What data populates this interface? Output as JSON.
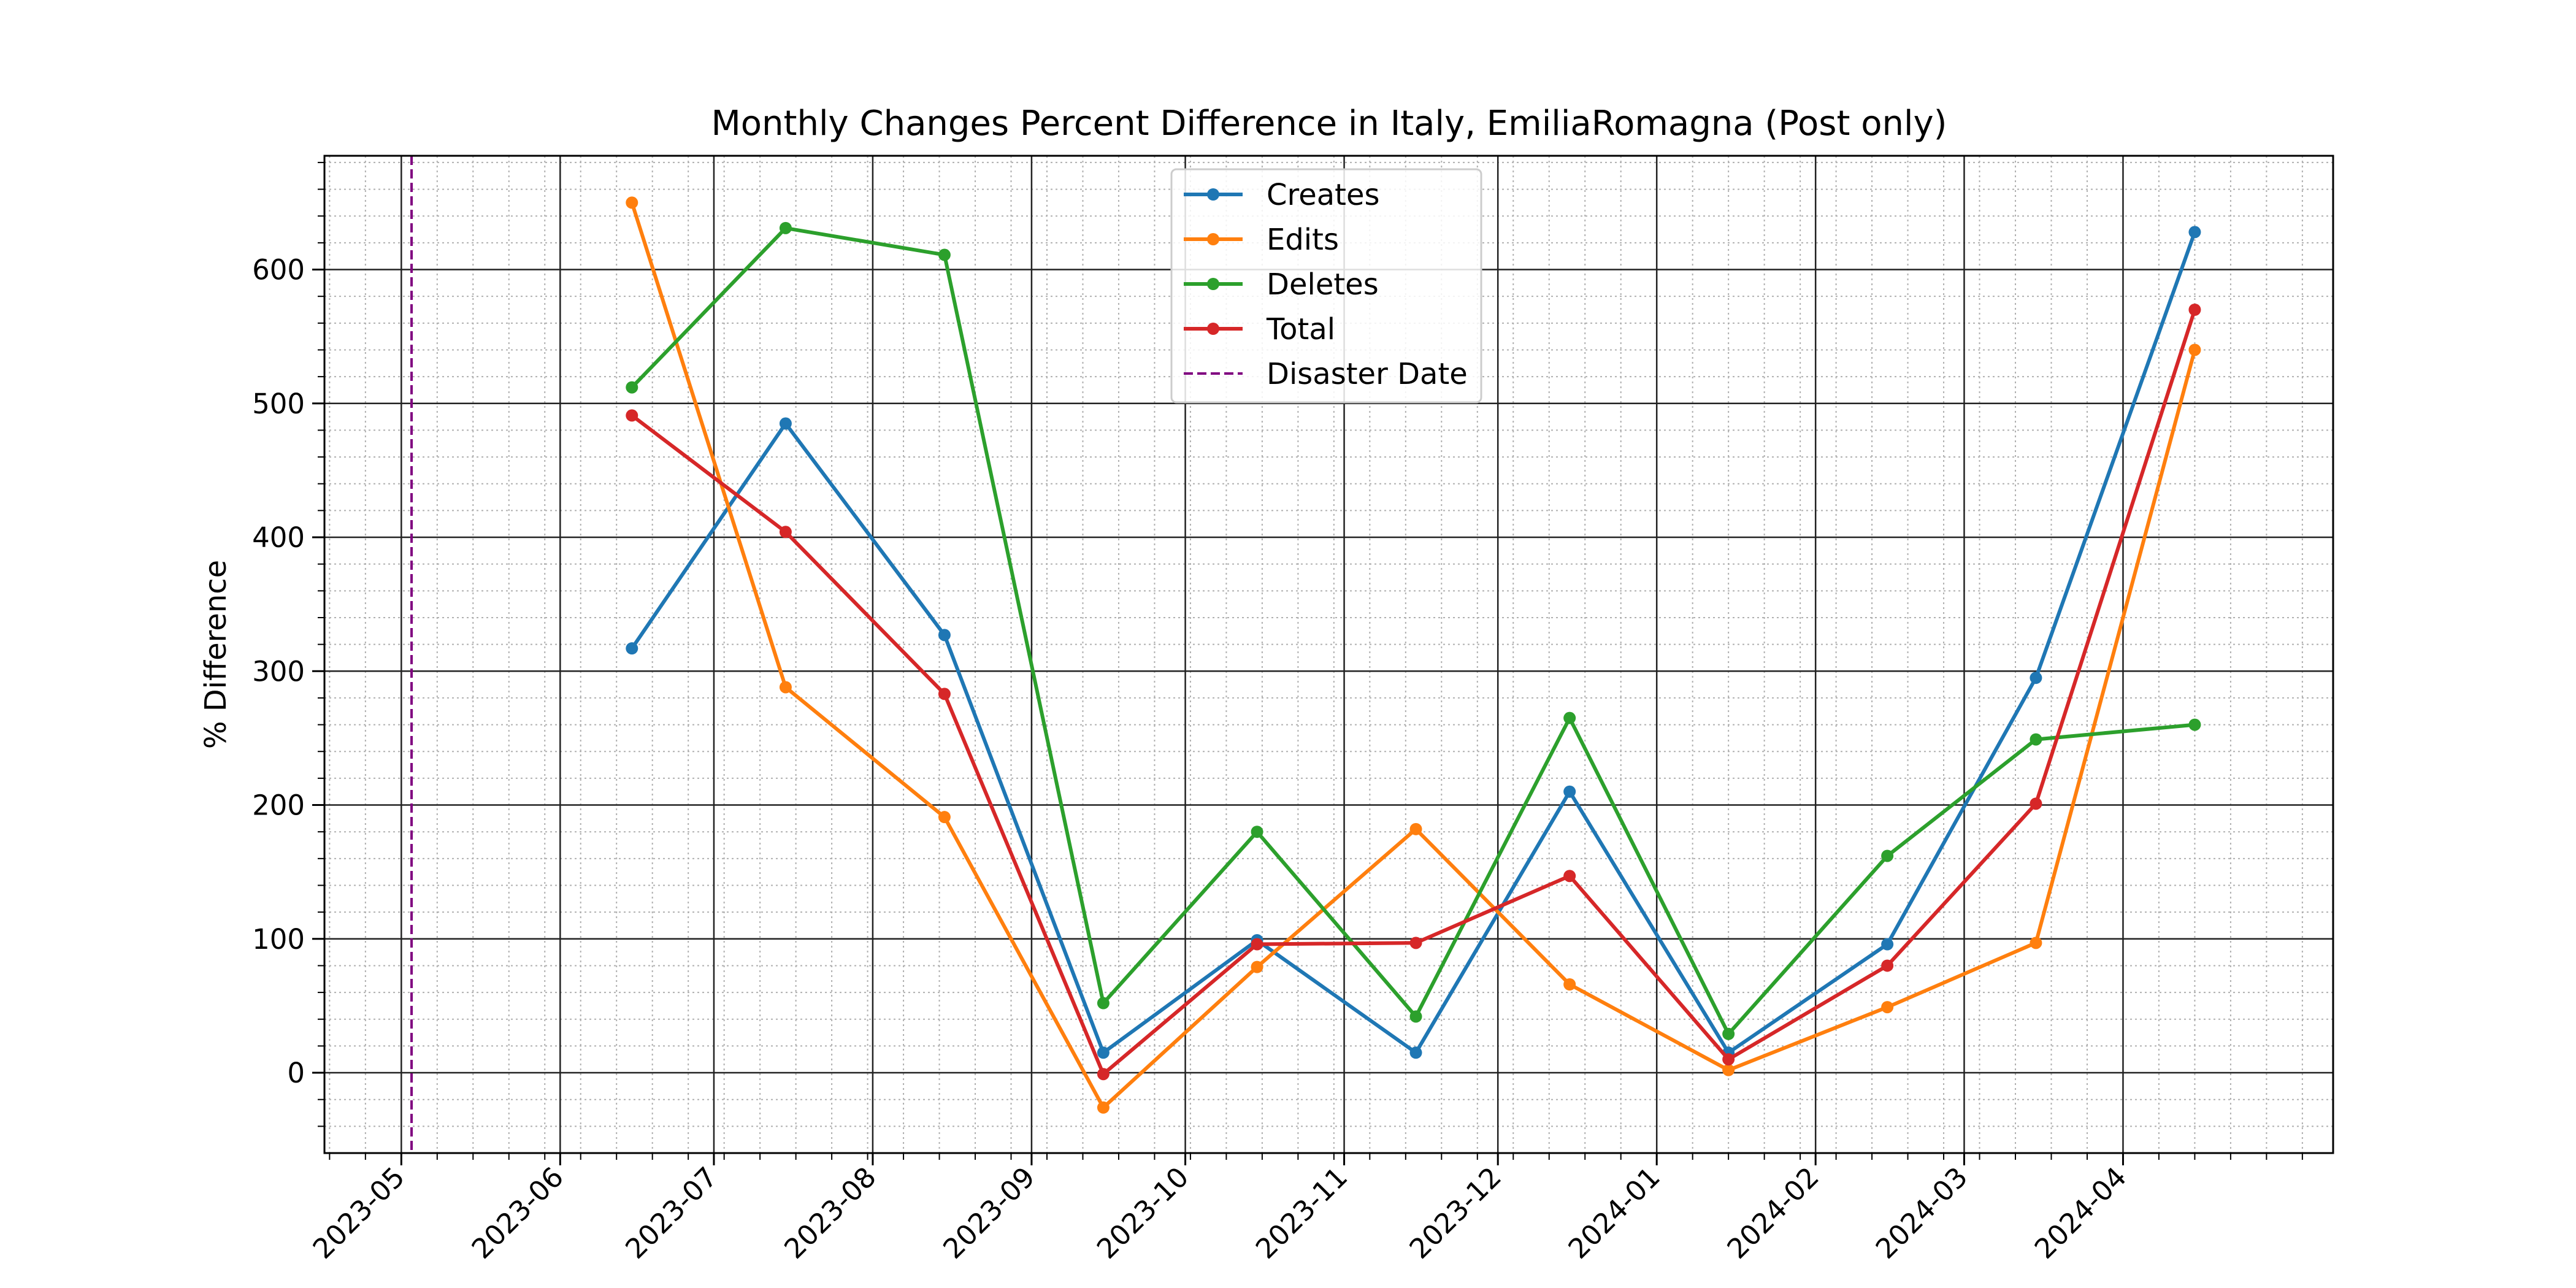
{
  "chart_data": {
    "type": "line",
    "title": "Monthly Changes Percent Difference in Italy, EmiliaRomagna (Post only)",
    "xlabel": "",
    "ylabel": "% Difference",
    "x_dates": [
      "2023-06-15",
      "2023-07-15",
      "2023-08-15",
      "2023-09-15",
      "2023-10-15",
      "2023-11-15",
      "2023-12-15",
      "2024-01-15",
      "2024-02-15",
      "2024-03-15",
      "2024-04-15"
    ],
    "x_ticks": [
      "2023-05",
      "2023-06",
      "2023-07",
      "2023-08",
      "2023-09",
      "2023-10",
      "2023-11",
      "2023-12",
      "2024-01",
      "2024-02",
      "2024-03",
      "2024-04"
    ],
    "xlim": [
      "2023-04-16",
      "2024-05-12"
    ],
    "y_ticks": [
      0,
      100,
      200,
      300,
      400,
      500,
      600
    ],
    "ylim": [
      -60,
      685
    ],
    "grid": true,
    "minor_grid": true,
    "legend_position": "top-center",
    "series": [
      {
        "name": "Creates",
        "color": "#1f77b4",
        "values": [
          317,
          485,
          327,
          15,
          99,
          15,
          210,
          15,
          96,
          295,
          628
        ]
      },
      {
        "name": "Edits",
        "color": "#ff7f0e",
        "values": [
          650,
          288,
          191,
          -26,
          79,
          182,
          66,
          2,
          49,
          97,
          540
        ]
      },
      {
        "name": "Deletes",
        "color": "#2ca02c",
        "values": [
          512,
          631,
          611,
          52,
          180,
          42,
          265,
          29,
          162,
          249,
          260
        ]
      },
      {
        "name": "Total",
        "color": "#d62728",
        "values": [
          491,
          404,
          283,
          -1,
          96,
          97,
          147,
          10,
          80,
          201,
          570
        ]
      }
    ],
    "annotations": [
      {
        "type": "vline",
        "name": "Disaster Date",
        "date": "2023-05-03",
        "color": "#800080",
        "style": "dashed"
      }
    ]
  }
}
